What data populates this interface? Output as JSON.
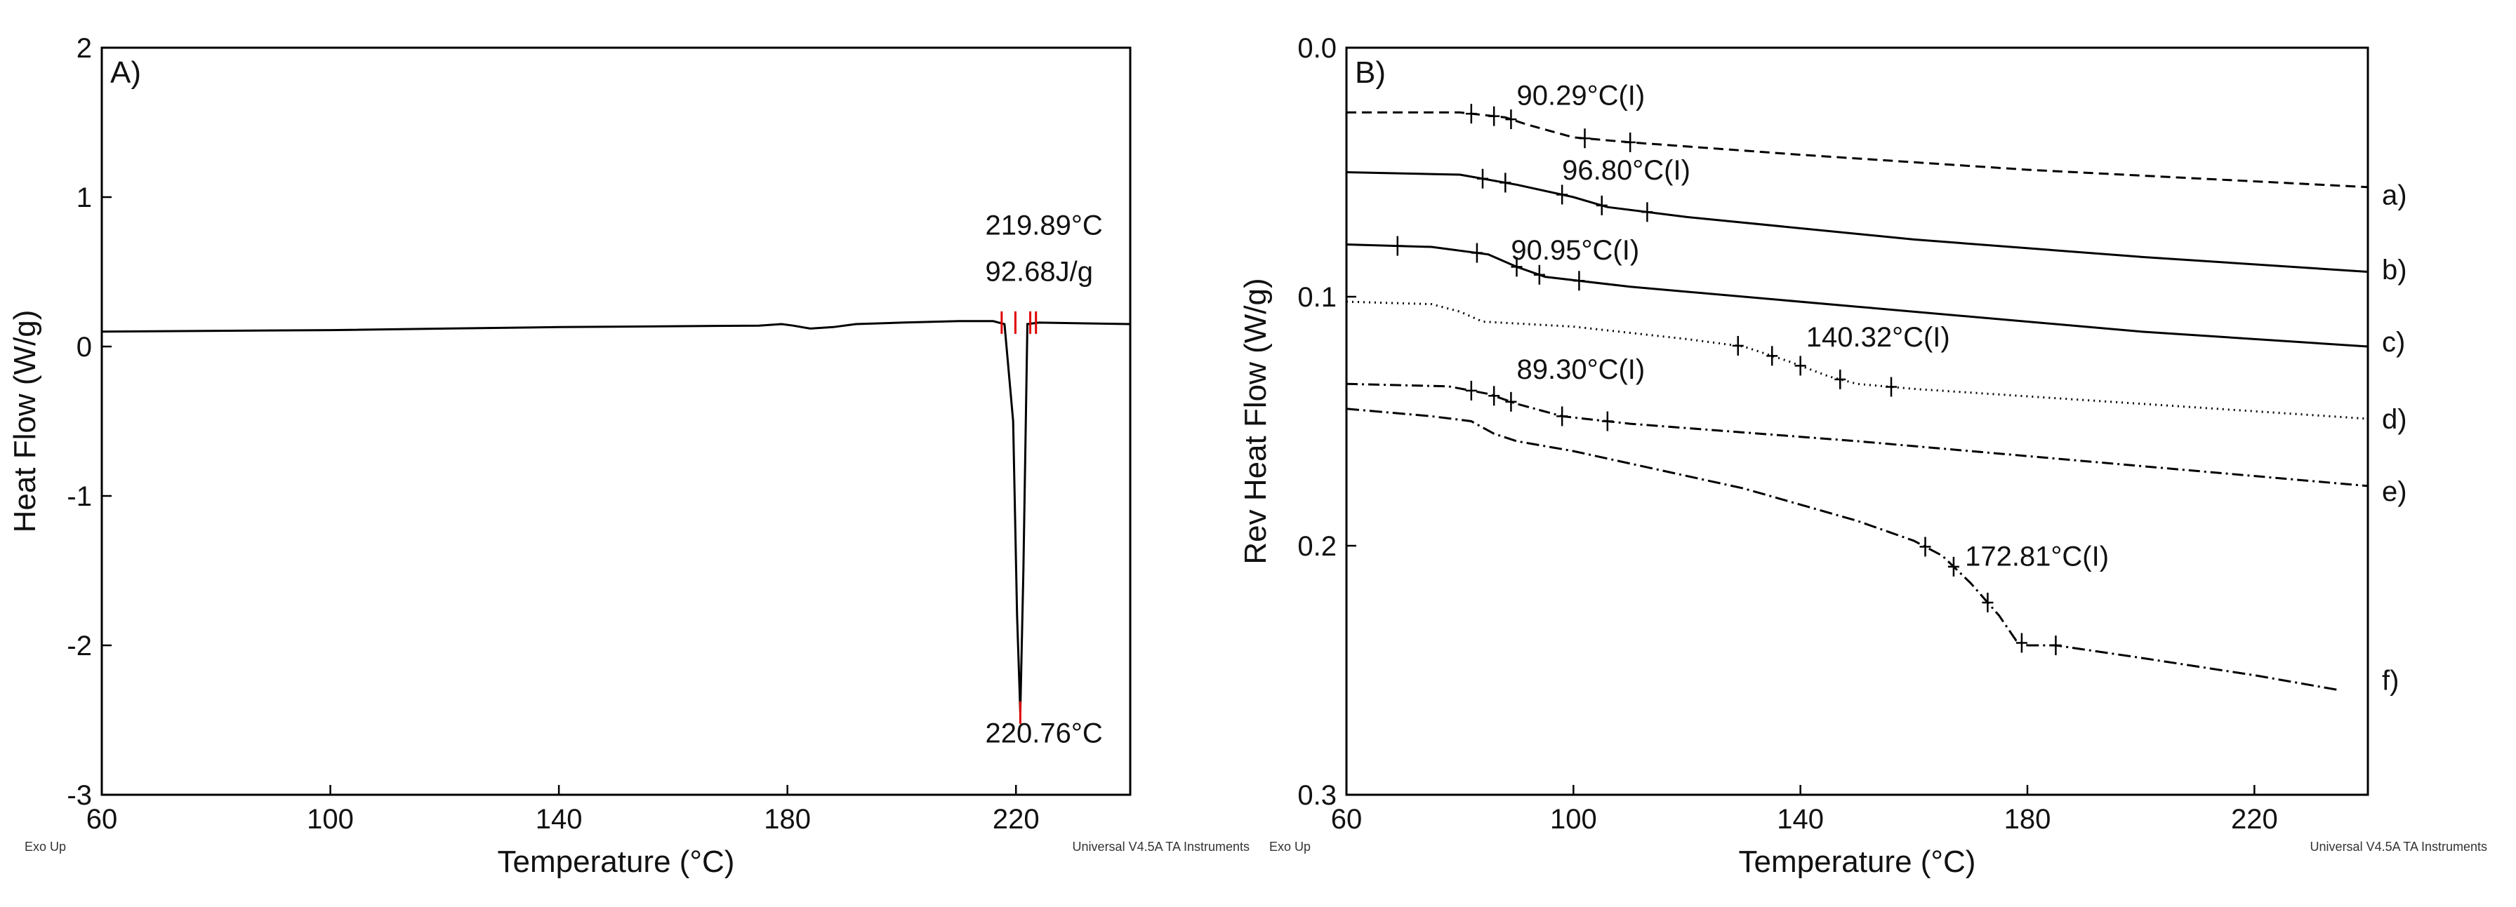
{
  "chart_data": [
    {
      "type": "line",
      "panel_label": "A)",
      "xlabel": "Temperature (°C)",
      "ylabel": "Heat Flow (W/g)",
      "xlim": [
        60,
        240
      ],
      "ylim": [
        -3,
        2
      ],
      "x_ticks": [
        60,
        100,
        140,
        180,
        220
      ],
      "y_ticks": [
        -3,
        -2,
        -1,
        0,
        1,
        2
      ],
      "footer_left": "Exo Up",
      "footer_right": "Universal V4.5A TA Instruments",
      "series": [
        {
          "x": [
            60,
            100,
            140,
            175,
            179,
            181,
            184,
            188,
            192,
            200,
            210,
            216,
            218,
            219.5,
            220.2,
            220.76,
            221.3,
            222,
            224,
            240
          ],
          "y": [
            0.1,
            0.11,
            0.13,
            0.14,
            0.15,
            0.14,
            0.12,
            0.13,
            0.15,
            0.16,
            0.17,
            0.17,
            0.15,
            -0.5,
            -1.8,
            -2.45,
            -1.5,
            0.15,
            0.16,
            0.15
          ]
        }
      ],
      "annotations": [
        {
          "text": "219.89°C",
          "x": 222,
          "y": 0.75
        },
        {
          "text": "92.68J/g",
          "x": 222,
          "y": 0.44
        },
        {
          "text": "220.76°C",
          "x": 222,
          "y": -2.65
        }
      ],
      "markers": [
        {
          "x": 217.5,
          "y": 0.16
        },
        {
          "x": 219.9,
          "y": 0.16
        },
        {
          "x": 222.5,
          "y": 0.16
        },
        {
          "x": 223.5,
          "y": 0.16
        },
        {
          "x": 220.76,
          "y": -2.45
        }
      ]
    },
    {
      "type": "line",
      "panel_label": "B)",
      "xlabel": "Temperature (°C)",
      "ylabel": "Rev Heat Flow (W/g)",
      "xlim": [
        60,
        240
      ],
      "ylim": [
        -0.3,
        0.0
      ],
      "x_ticks": [
        60,
        100,
        140,
        180,
        220
      ],
      "y_ticks": [
        0.0,
        -0.1,
        -0.2,
        -0.3
      ],
      "y_tick_labels": [
        "0.0",
        "0.1",
        "0.2",
        "0.3"
      ],
      "footer_left": "Exo Up",
      "footer_right": "Universal V4.5A TA Instruments",
      "series": [
        {
          "name": "a)",
          "dash": "14,8",
          "x": [
            60,
            80,
            88,
            92,
            100,
            110,
            140,
            180,
            240
          ],
          "y": [
            -0.026,
            -0.026,
            -0.028,
            -0.031,
            -0.036,
            -0.038,
            -0.043,
            -0.049,
            -0.056
          ],
          "markers_x": [
            82,
            86,
            89,
            102,
            110
          ],
          "annotation": {
            "text": "90.29°C(I)",
            "x": 90,
            "y": -0.023
          },
          "label_y": -0.059
        },
        {
          "name": "b)",
          "dash": "",
          "x": [
            60,
            80,
            90,
            100,
            106,
            120,
            160,
            200,
            240
          ],
          "y": [
            -0.05,
            -0.051,
            -0.055,
            -0.06,
            -0.064,
            -0.068,
            -0.077,
            -0.084,
            -0.09
          ],
          "markers_x": [
            84,
            88,
            98,
            105,
            113
          ],
          "annotation": {
            "text": "96.80°C(I)",
            "x": 98,
            "y": -0.053
          },
          "label_y": -0.089
        },
        {
          "name": "c)",
          "dash": "",
          "x": [
            60,
            75,
            85,
            90,
            95,
            110,
            150,
            200,
            240
          ],
          "y": [
            -0.079,
            -0.08,
            -0.083,
            -0.088,
            -0.092,
            -0.096,
            -0.104,
            -0.114,
            -0.12
          ],
          "markers_x": [
            69,
            83,
            90,
            94,
            101
          ],
          "annotation": {
            "text": "90.95°C(I)",
            "x": 89,
            "y": -0.085
          },
          "label_y": -0.118
        },
        {
          "name": "d)",
          "dash": "2,6",
          "x": [
            60,
            75,
            80,
            84,
            100,
            120,
            130,
            138,
            145,
            150,
            160,
            200,
            240
          ],
          "y": [
            -0.102,
            -0.103,
            -0.106,
            -0.11,
            -0.112,
            -0.117,
            -0.12,
            -0.126,
            -0.132,
            -0.135,
            -0.137,
            -0.143,
            -0.149
          ],
          "markers_x": [
            129,
            135,
            140,
            147,
            156
          ],
          "annotation": {
            "text": "140.32°C(I)",
            "x": 141,
            "y": -0.12
          },
          "label_y": -0.149
        },
        {
          "name": "e)",
          "dash": "16,6,3,6",
          "x": [
            60,
            78,
            85,
            90,
            98,
            110,
            150,
            200,
            240
          ],
          "y": [
            -0.135,
            -0.136,
            -0.139,
            -0.143,
            -0.148,
            -0.151,
            -0.158,
            -0.168,
            -0.176
          ],
          "markers_x": [
            82,
            86,
            89,
            98,
            106
          ],
          "annotation": {
            "text": "89.30°C(I)",
            "x": 90,
            "y": -0.133
          },
          "label_y": -0.178
        },
        {
          "name": "f)",
          "dash": "18,6,3,6",
          "x": [
            60,
            75,
            82,
            86,
            90,
            100,
            130,
            150,
            160,
            165,
            170,
            175,
            178,
            180,
            185,
            200,
            220,
            235
          ],
          "y": [
            -0.145,
            -0.148,
            -0.15,
            -0.155,
            -0.158,
            -0.162,
            -0.177,
            -0.19,
            -0.198,
            -0.204,
            -0.215,
            -0.228,
            -0.238,
            -0.24,
            -0.24,
            -0.245,
            -0.252,
            -0.258
          ],
          "markers_x": [
            162,
            167,
            173,
            179,
            185
          ],
          "annotation": {
            "text": "172.81°C(I)",
            "x": 169,
            "y": -0.208
          },
          "label_y": -0.254
        }
      ]
    }
  ]
}
